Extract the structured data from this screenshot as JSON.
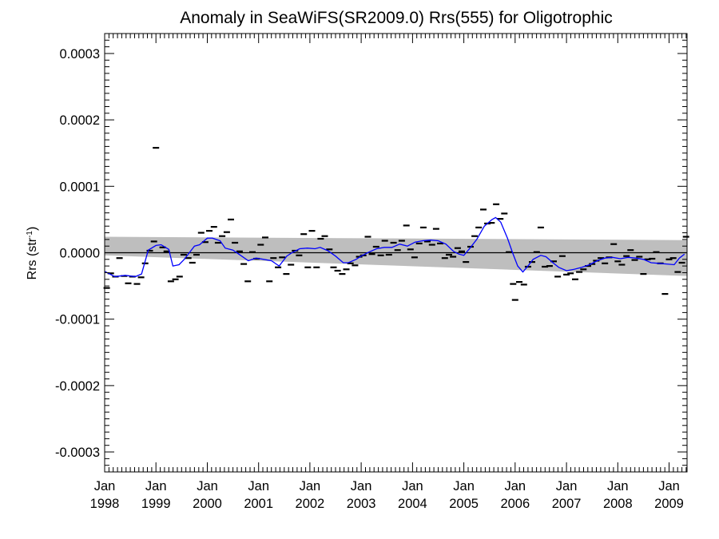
{
  "chart_data": {
    "type": "scatter",
    "title": "Anomaly in SeaWiFS(SR2009.0) Rrs(555) for Oligotrophic",
    "xlabel": "",
    "ylabel": "Rrs (str",
    "ylabel_sup": "-1",
    "ylabel_end": ")",
    "xlim": [
      1998.0,
      2009.35
    ],
    "ylim": [
      -0.00033,
      0.00033
    ],
    "yticks": [
      {
        "v": 0.0003,
        "label": "0.0003"
      },
      {
        "v": 0.0002,
        "label": "0.0002"
      },
      {
        "v": 0.0001,
        "label": "0.0001"
      },
      {
        "v": 0.0,
        "label": "0.0000"
      },
      {
        "v": -0.0001,
        "label": "-0.0001"
      },
      {
        "v": -0.0002,
        "label": "-0.0002"
      },
      {
        "v": -0.0003,
        "label": "-0.0003"
      }
    ],
    "xticks": [
      {
        "v": 1998,
        "month": "Jan",
        "year": "1998"
      },
      {
        "v": 1999,
        "month": "Jan",
        "year": "1999"
      },
      {
        "v": 2000,
        "month": "Jan",
        "year": "2000"
      },
      {
        "v": 2001,
        "month": "Jan",
        "year": "2001"
      },
      {
        "v": 2002,
        "month": "Jan",
        "year": "2002"
      },
      {
        "v": 2003,
        "month": "Jan",
        "year": "2003"
      },
      {
        "v": 2004,
        "month": "Jan",
        "year": "2004"
      },
      {
        "v": 2005,
        "month": "Jan",
        "year": "2005"
      },
      {
        "v": 2006,
        "month": "Jan",
        "year": "2006"
      },
      {
        "v": 2007,
        "month": "Jan",
        "year": "2007"
      },
      {
        "v": 2008,
        "month": "Jan",
        "year": "2008"
      },
      {
        "v": 2009,
        "month": "Jan",
        "year": "2009"
      }
    ],
    "grid": false,
    "zero_line": 0.0,
    "band_upper": [
      [
        1998.0,
        2.4e-05
      ],
      [
        2009.35,
        1.9e-05
      ]
    ],
    "band_lower": [
      [
        1998.0,
        -4e-06
      ],
      [
        2009.35,
        -3.5e-05
      ]
    ],
    "band_color": "#bebebe",
    "line_color": "#0000ff",
    "marker_color": "#000000",
    "points": [
      [
        1998.04,
        -5.3e-05
      ],
      [
        1998.12,
        -3.1e-05
      ],
      [
        1998.21,
        -3.6e-05
      ],
      [
        1998.29,
        -8e-06
      ],
      [
        1998.38,
        -3.5e-05
      ],
      [
        1998.46,
        -4.6e-05
      ],
      [
        1998.54,
        -3.6e-05
      ],
      [
        1998.63,
        -4.7e-05
      ],
      [
        1998.71,
        -3.7e-05
      ],
      [
        1998.79,
        -1.6e-05
      ],
      [
        1998.88,
        3e-06
      ],
      [
        1998.96,
        1.7e-05
      ],
      [
        1999.0,
        0.000158
      ],
      [
        1999.13,
        8e-06
      ],
      [
        1999.21,
        2e-06
      ],
      [
        1999.29,
        -4.3e-05
      ],
      [
        1999.38,
        -4e-05
      ],
      [
        1999.46,
        -3.6e-05
      ],
      [
        1999.54,
        -3e-06
      ],
      [
        1999.63,
        -8e-06
      ],
      [
        1999.71,
        -1.5e-05
      ],
      [
        1999.79,
        -3e-06
      ],
      [
        1999.88,
        3e-05
      ],
      [
        1999.96,
        1.6e-05
      ],
      [
        2000.04,
        3.3e-05
      ],
      [
        2000.13,
        3.9e-05
      ],
      [
        2000.21,
        1.5e-05
      ],
      [
        2000.29,
        2.5e-05
      ],
      [
        2000.38,
        3.1e-05
      ],
      [
        2000.46,
        5e-05
      ],
      [
        2000.54,
        1.5e-05
      ],
      [
        2000.63,
        2e-06
      ],
      [
        2000.71,
        -1.7e-05
      ],
      [
        2000.79,
        -4.3e-05
      ],
      [
        2000.88,
        1e-06
      ],
      [
        2000.96,
        -9e-06
      ],
      [
        2001.04,
        1.2e-05
      ],
      [
        2001.13,
        2.3e-05
      ],
      [
        2001.21,
        -4.3e-05
      ],
      [
        2001.29,
        -8e-06
      ],
      [
        2001.38,
        -2.2e-05
      ],
      [
        2001.46,
        -7e-06
      ],
      [
        2001.54,
        -3.2e-05
      ],
      [
        2001.63,
        -1.8e-05
      ],
      [
        2001.71,
        3e-06
      ],
      [
        2001.79,
        -4e-06
      ],
      [
        2001.88,
        2.8e-05
      ],
      [
        2001.96,
        -2.2e-05
      ],
      [
        2002.04,
        3.3e-05
      ],
      [
        2002.13,
        -2.2e-05
      ],
      [
        2002.21,
        2.1e-05
      ],
      [
        2002.29,
        2.5e-05
      ],
      [
        2002.38,
        5e-06
      ],
      [
        2002.46,
        -2.2e-05
      ],
      [
        2002.54,
        -2.7e-05
      ],
      [
        2002.63,
        -3.2e-05
      ],
      [
        2002.71,
        -2.5e-05
      ],
      [
        2002.79,
        -1.6e-05
      ],
      [
        2002.88,
        -1.9e-05
      ],
      [
        2002.96,
        -6e-06
      ],
      [
        2003.04,
        -4e-06
      ],
      [
        2003.13,
        2.4e-05
      ],
      [
        2003.21,
        -2e-06
      ],
      [
        2003.29,
        9e-06
      ],
      [
        2003.38,
        -4e-06
      ],
      [
        2003.46,
        1.8e-05
      ],
      [
        2003.54,
        -3e-06
      ],
      [
        2003.63,
        1.5e-05
      ],
      [
        2003.71,
        4e-06
      ],
      [
        2003.79,
        1.8e-05
      ],
      [
        2003.88,
        4.1e-05
      ],
      [
        2003.96,
        5e-06
      ],
      [
        2004.04,
        -7e-06
      ],
      [
        2004.13,
        1.4e-05
      ],
      [
        2004.21,
        3.8e-05
      ],
      [
        2004.29,
        1.7e-05
      ],
      [
        2004.38,
        1.2e-05
      ],
      [
        2004.46,
        3.6e-05
      ],
      [
        2004.54,
        1.4e-05
      ],
      [
        2004.63,
        -8e-06
      ],
      [
        2004.71,
        -3e-06
      ],
      [
        2004.79,
        -6e-06
      ],
      [
        2004.88,
        7e-06
      ],
      [
        2004.96,
        2e-06
      ],
      [
        2005.04,
        -1.4e-05
      ],
      [
        2005.13,
        9e-06
      ],
      [
        2005.21,
        2.5e-05
      ],
      [
        2005.29,
        3.8e-05
      ],
      [
        2005.38,
        6.5e-05
      ],
      [
        2005.46,
        4.4e-05
      ],
      [
        2005.54,
        4.5e-05
      ],
      [
        2005.63,
        7.3e-05
      ],
      [
        2005.71,
        5.1e-05
      ],
      [
        2005.79,
        5.9e-05
      ],
      [
        2005.88,
        1e-06
      ],
      [
        2005.96,
        -4.7e-05
      ],
      [
        2006.0,
        -7.1e-05
      ],
      [
        2006.08,
        -4.4e-05
      ],
      [
        2006.17,
        -4.8e-05
      ],
      [
        2006.25,
        -2.1e-05
      ],
      [
        2006.33,
        -1.4e-05
      ],
      [
        2006.42,
        1e-06
      ],
      [
        2006.5,
        3.8e-05
      ],
      [
        2006.58,
        -2.1e-05
      ],
      [
        2006.67,
        -2e-05
      ],
      [
        2006.75,
        -1.3e-05
      ],
      [
        2006.83,
        -3.6e-05
      ],
      [
        2006.92,
        -5e-06
      ],
      [
        2007.0,
        -3.3e-05
      ],
      [
        2007.08,
        -3.1e-05
      ],
      [
        2007.17,
        -4e-05
      ],
      [
        2007.25,
        -2.9e-05
      ],
      [
        2007.33,
        -2.5e-05
      ],
      [
        2007.42,
        -2e-05
      ],
      [
        2007.5,
        -1.7e-05
      ],
      [
        2007.58,
        -1.2e-05
      ],
      [
        2007.67,
        -8e-06
      ],
      [
        2007.75,
        -1.6e-05
      ],
      [
        2007.83,
        -7e-06
      ],
      [
        2007.92,
        1.3e-05
      ],
      [
        2008.0,
        -1.3e-05
      ],
      [
        2008.08,
        -1.8e-05
      ],
      [
        2008.17,
        -5e-06
      ],
      [
        2008.25,
        4e-06
      ],
      [
        2008.33,
        -1.1e-05
      ],
      [
        2008.42,
        -6e-06
      ],
      [
        2008.5,
        -3.2e-05
      ],
      [
        2008.58,
        -1e-05
      ],
      [
        2008.67,
        -9e-06
      ],
      [
        2008.75,
        1e-06
      ],
      [
        2008.83,
        -1.6e-05
      ],
      [
        2008.92,
        -6.2e-05
      ],
      [
        2009.0,
        -1e-05
      ],
      [
        2009.08,
        -8e-06
      ],
      [
        2009.17,
        -2.9e-05
      ],
      [
        2009.25,
        -1.5e-05
      ],
      [
        2009.33,
        2.4e-05
      ]
    ],
    "smooth_line": [
      [
        1998.0,
        -2.8e-05
      ],
      [
        1998.2,
        -3.6e-05
      ],
      [
        1998.4,
        -3.4e-05
      ],
      [
        1998.6,
        -3.6e-05
      ],
      [
        1998.72,
        -3.2e-05
      ],
      [
        1998.85,
        4e-06
      ],
      [
        1999.0,
        1.1e-05
      ],
      [
        1999.1,
        1.2e-05
      ],
      [
        1999.25,
        5e-06
      ],
      [
        1999.33,
        -2e-05
      ],
      [
        1999.45,
        -1.8e-05
      ],
      [
        1999.55,
        -1e-05
      ],
      [
        1999.65,
        0.0
      ],
      [
        1999.75,
        1e-05
      ],
      [
        1999.85,
        1.2e-05
      ],
      [
        2000.0,
        2.2e-05
      ],
      [
        2000.1,
        2.2e-05
      ],
      [
        2000.25,
        1.8e-05
      ],
      [
        2000.35,
        7e-06
      ],
      [
        2000.5,
        4e-06
      ],
      [
        2000.65,
        -4e-06
      ],
      [
        2000.8,
        -1.2e-05
      ],
      [
        2000.95,
        -8e-06
      ],
      [
        2001.1,
        -1e-05
      ],
      [
        2001.25,
        -1.2e-05
      ],
      [
        2001.4,
        -2e-05
      ],
      [
        2001.55,
        -5e-06
      ],
      [
        2001.65,
        0.0
      ],
      [
        2001.8,
        6e-06
      ],
      [
        2001.95,
        7e-06
      ],
      [
        2002.1,
        6e-06
      ],
      [
        2002.2,
        8e-06
      ],
      [
        2002.35,
        3e-06
      ],
      [
        2002.5,
        -5e-06
      ],
      [
        2002.65,
        -1.5e-05
      ],
      [
        2002.75,
        -1.5e-05
      ],
      [
        2002.9,
        -1e-05
      ],
      [
        2003.0,
        -5e-06
      ],
      [
        2003.15,
        1e-06
      ],
      [
        2003.3,
        6e-06
      ],
      [
        2003.45,
        8e-06
      ],
      [
        2003.6,
        8e-06
      ],
      [
        2003.75,
        1.3e-05
      ],
      [
        2003.9,
        1e-05
      ],
      [
        2004.05,
        1.6e-05
      ],
      [
        2004.2,
        1.8e-05
      ],
      [
        2004.35,
        1.9e-05
      ],
      [
        2004.5,
        1.8e-05
      ],
      [
        2004.65,
        1.3e-05
      ],
      [
        2004.8,
        2e-06
      ],
      [
        2004.9,
        -2e-06
      ],
      [
        2005.0,
        -4e-06
      ],
      [
        2005.1,
        5e-06
      ],
      [
        2005.25,
        2e-05
      ],
      [
        2005.4,
        4e-05
      ],
      [
        2005.55,
        5e-05
      ],
      [
        2005.62,
        5.3e-05
      ],
      [
        2005.72,
        4.6e-05
      ],
      [
        2005.85,
        2.2e-05
      ],
      [
        2005.95,
        0.0
      ],
      [
        2006.05,
        -2e-05
      ],
      [
        2006.15,
        -2.9e-05
      ],
      [
        2006.25,
        -2e-05
      ],
      [
        2006.35,
        -1e-05
      ],
      [
        2006.5,
        -4e-06
      ],
      [
        2006.6,
        -6e-06
      ],
      [
        2006.75,
        -1.6e-05
      ],
      [
        2006.85,
        -2.2e-05
      ],
      [
        2007.0,
        -2.7e-05
      ],
      [
        2007.15,
        -2.5e-05
      ],
      [
        2007.3,
        -2.2e-05
      ],
      [
        2007.45,
        -1.8e-05
      ],
      [
        2007.6,
        -1.2e-05
      ],
      [
        2007.75,
        -8e-06
      ],
      [
        2007.9,
        -7e-06
      ],
      [
        2008.05,
        -9e-06
      ],
      [
        2008.2,
        -7e-06
      ],
      [
        2008.35,
        -8e-06
      ],
      [
        2008.5,
        -1e-05
      ],
      [
        2008.65,
        -1.5e-05
      ],
      [
        2008.8,
        -1.6e-05
      ],
      [
        2008.95,
        -1.7e-05
      ],
      [
        2009.1,
        -1.8e-05
      ],
      [
        2009.2,
        -8e-06
      ],
      [
        2009.3,
        -2e-06
      ]
    ]
  }
}
